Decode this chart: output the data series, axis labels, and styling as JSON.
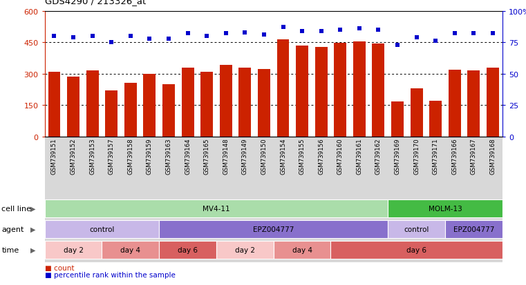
{
  "title": "GDS4290 / 213326_at",
  "samples": [
    "GSM739151",
    "GSM739152",
    "GSM739153",
    "GSM739157",
    "GSM739158",
    "GSM739159",
    "GSM739163",
    "GSM739164",
    "GSM739165",
    "GSM739148",
    "GSM739149",
    "GSM739150",
    "GSM739154",
    "GSM739155",
    "GSM739156",
    "GSM739160",
    "GSM739161",
    "GSM739162",
    "GSM739169",
    "GSM739170",
    "GSM739171",
    "GSM739166",
    "GSM739167",
    "GSM739168"
  ],
  "bar_values": [
    308,
    287,
    315,
    220,
    255,
    298,
    250,
    328,
    308,
    340,
    328,
    323,
    462,
    435,
    428,
    447,
    452,
    443,
    168,
    230,
    172,
    318,
    315,
    328
  ],
  "percentile_values": [
    80,
    79,
    80,
    75,
    80,
    78,
    78,
    82,
    80,
    82,
    83,
    81,
    87,
    84,
    84,
    85,
    86,
    85,
    73,
    79,
    76,
    82,
    82,
    82
  ],
  "bar_color": "#cc2200",
  "dot_color": "#0000cc",
  "ylim_left": [
    0,
    600
  ],
  "ylim_right": [
    0,
    100
  ],
  "yticks_left": [
    0,
    150,
    300,
    450,
    600
  ],
  "yticks_right": [
    0,
    25,
    50,
    75,
    100
  ],
  "grid_values": [
    150,
    300,
    450
  ],
  "cell_line_groups": [
    {
      "label": "MV4-11",
      "start": 0,
      "end": 18,
      "color": "#aaddaa"
    },
    {
      "label": "MOLM-13",
      "start": 18,
      "end": 24,
      "color": "#44bb44"
    }
  ],
  "agent_groups": [
    {
      "label": "control",
      "start": 0,
      "end": 6,
      "color": "#c8b8e8"
    },
    {
      "label": "EPZ004777",
      "start": 6,
      "end": 18,
      "color": "#8870cc"
    },
    {
      "label": "control",
      "start": 18,
      "end": 21,
      "color": "#c8b8e8"
    },
    {
      "label": "EPZ004777",
      "start": 21,
      "end": 24,
      "color": "#8870cc"
    }
  ],
  "time_groups": [
    {
      "label": "day 2",
      "start": 0,
      "end": 3,
      "color": "#f8c8c8"
    },
    {
      "label": "day 4",
      "start": 3,
      "end": 6,
      "color": "#e89090"
    },
    {
      "label": "day 6",
      "start": 6,
      "end": 9,
      "color": "#d86060"
    },
    {
      "label": "day 2",
      "start": 9,
      "end": 12,
      "color": "#f8c8c8"
    },
    {
      "label": "day 4",
      "start": 12,
      "end": 15,
      "color": "#e89090"
    },
    {
      "label": "day 6",
      "start": 15,
      "end": 24,
      "color": "#d86060"
    }
  ]
}
